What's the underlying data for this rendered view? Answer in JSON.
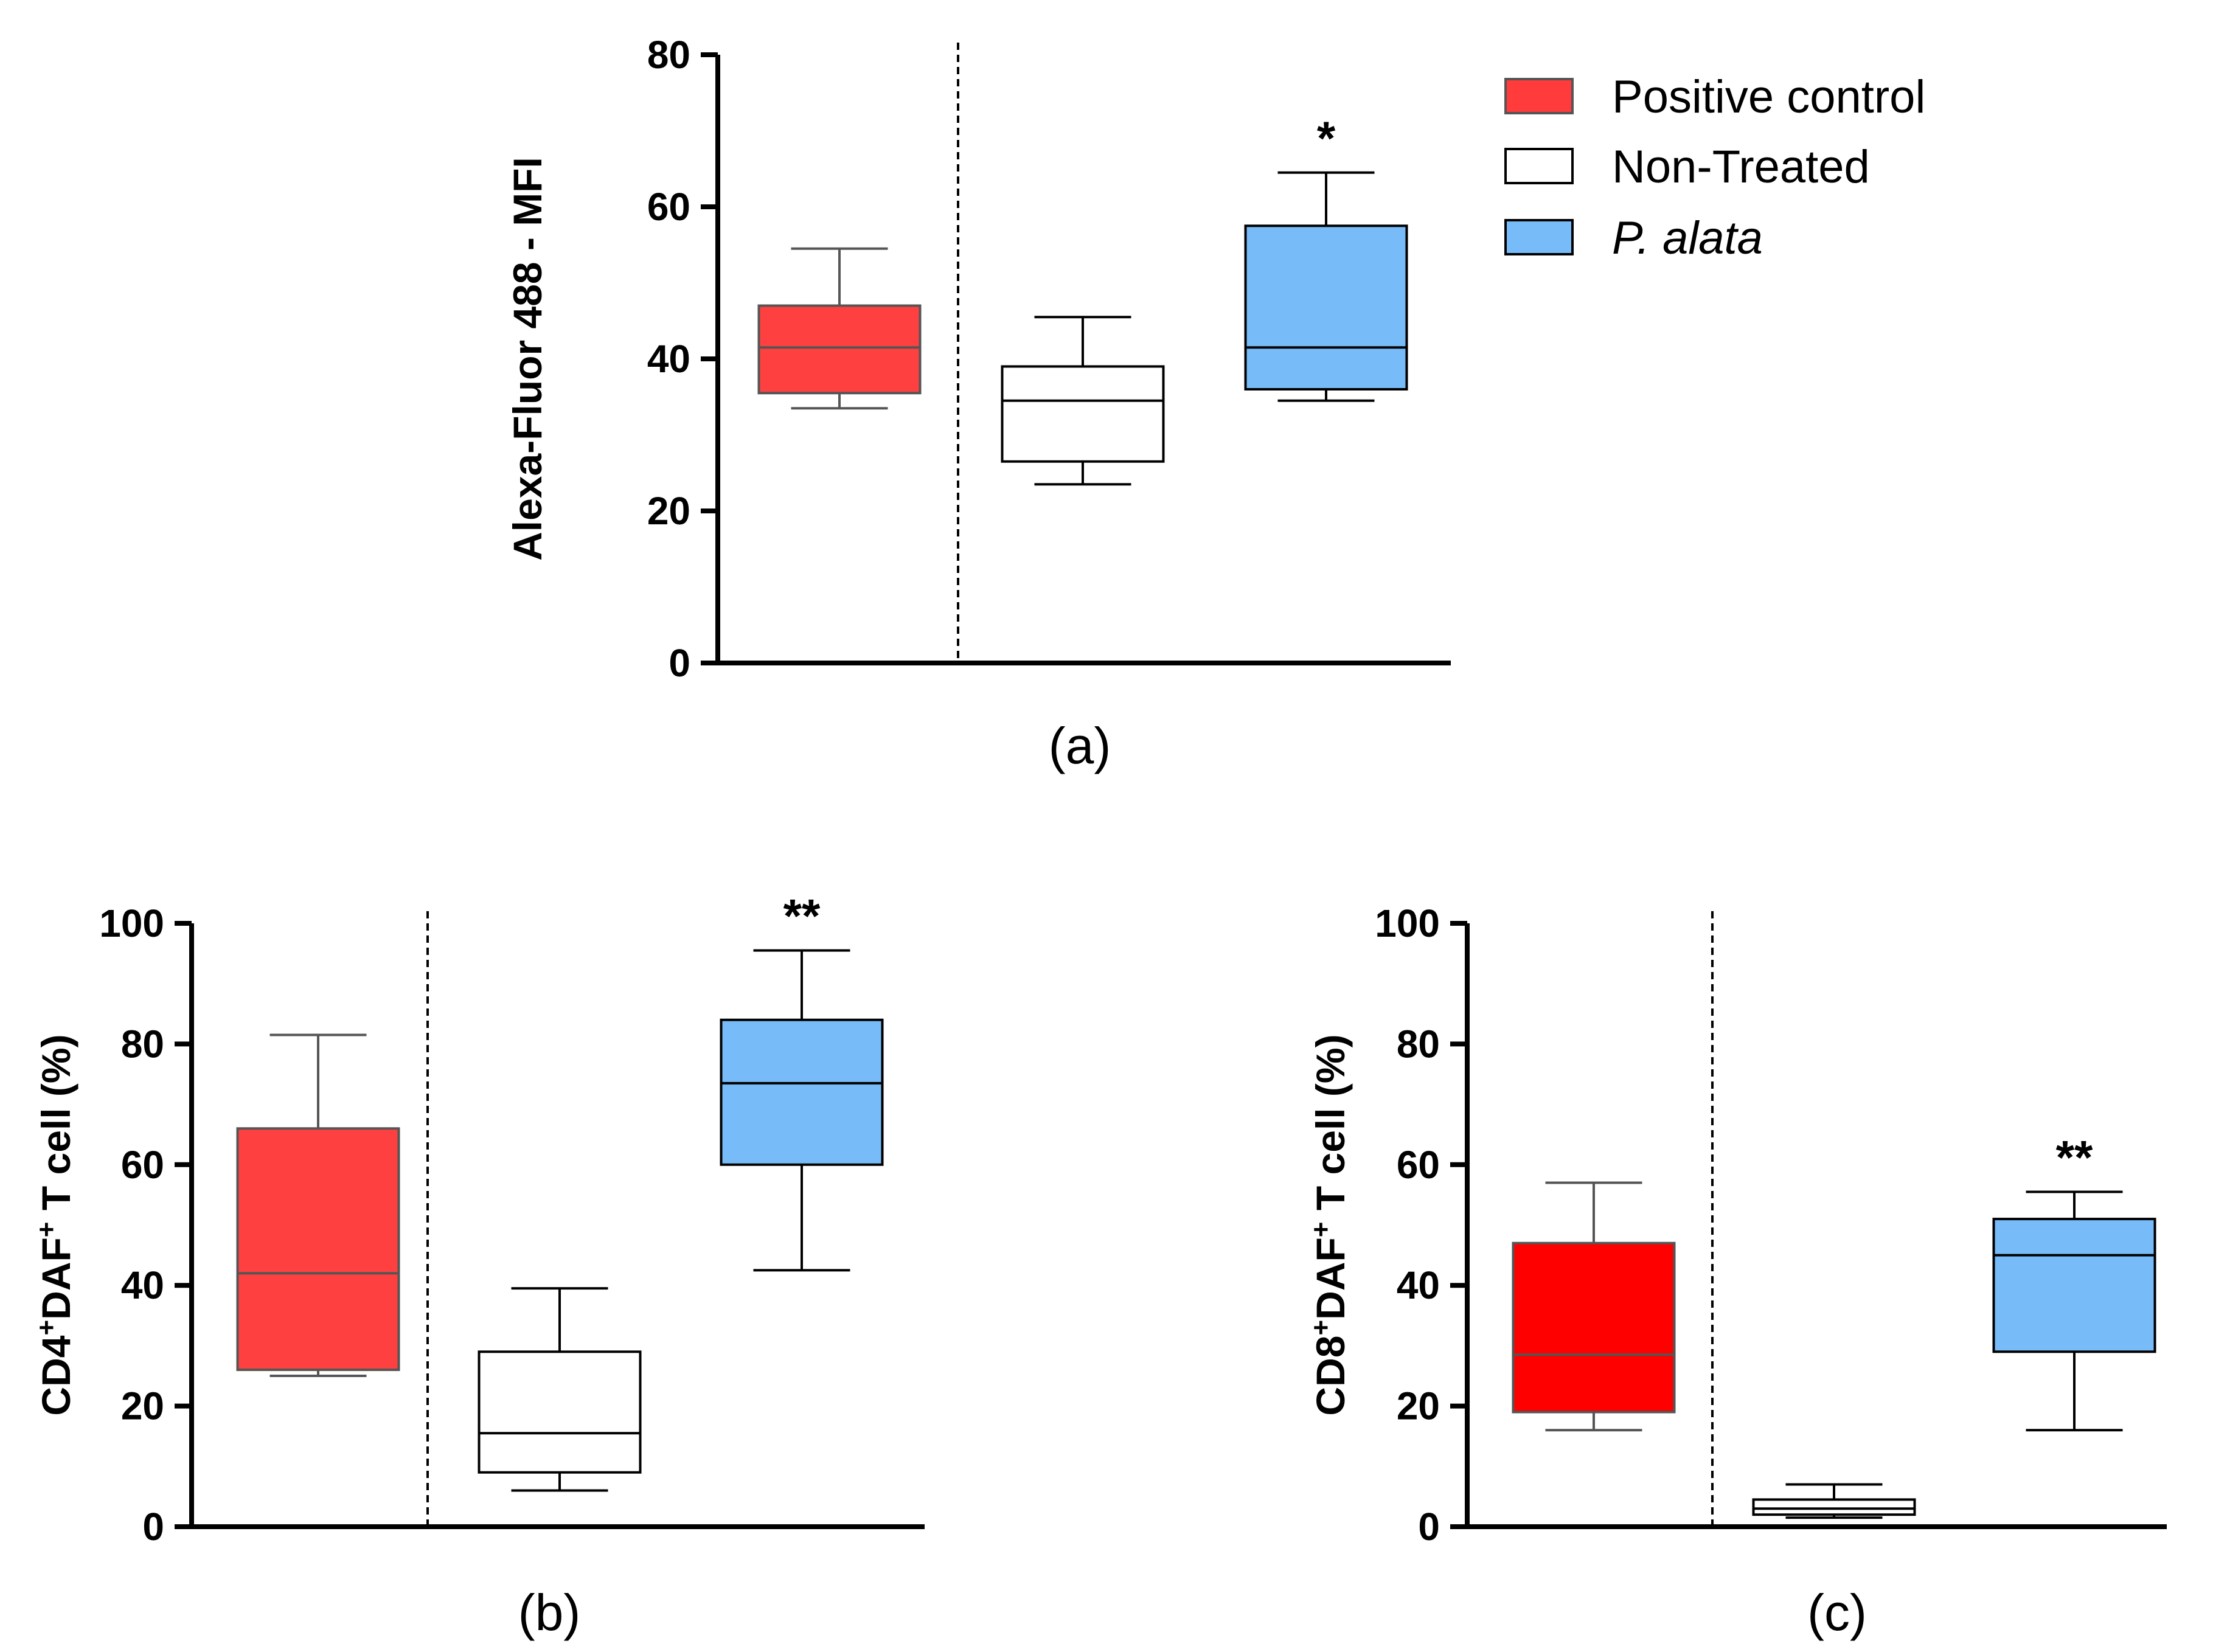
{
  "legend": {
    "position": "top-right",
    "items": [
      {
        "label": "Positive control",
        "italic": false,
        "color": "#ff3b3b"
      },
      {
        "label": "Non-Treated",
        "italic": false,
        "color": "#ffffff"
      },
      {
        "label": "P. alata",
        "italic": true,
        "color": "#77bbf8"
      }
    ]
  },
  "chart_data": [
    {
      "type": "box",
      "panel_label": "(a)",
      "ylabel": "Alexa-Fluor 488 - MFI",
      "ylim": [
        0,
        80
      ],
      "yticks": [
        0,
        20,
        40,
        60,
        80
      ],
      "groups": [
        {
          "name": "Positive control",
          "color": "#ff4040",
          "edge": "#555555",
          "min": 33.5,
          "q1": 35.5,
          "median": 41.5,
          "q3": 47,
          "max": 54.5,
          "sig": ""
        },
        {
          "name": "Non-Treated",
          "color": "#ffffff",
          "edge": "#000000",
          "min": 23.5,
          "q1": 26.5,
          "median": 34.5,
          "q3": 39,
          "max": 45.5,
          "sig": ""
        },
        {
          "name": "P. alata",
          "color": "#77bbf8",
          "edge": "#000000",
          "min": 34.5,
          "q1": 36,
          "median": 41.5,
          "q3": 57.5,
          "max": 64.5,
          "sig": "*"
        }
      ],
      "divider": "dashed line between Positive control and Non-Treated"
    },
    {
      "type": "box",
      "panel_label": "(b)",
      "ylabel": {
        "prefix": "CD4",
        "sup1": "+",
        "mid": "DAF",
        "sup2": "+",
        "suffix": " T cell (%)"
      },
      "ylim": [
        0,
        100
      ],
      "yticks": [
        0,
        20,
        40,
        60,
        80,
        100
      ],
      "groups": [
        {
          "name": "Positive control",
          "color": "#ff4040",
          "edge": "#555555",
          "min": 25,
          "q1": 26,
          "median": 42,
          "q3": 66,
          "max": 81.5,
          "sig": ""
        },
        {
          "name": "Non-Treated",
          "color": "#ffffff",
          "edge": "#000000",
          "min": 6,
          "q1": 9,
          "median": 15.5,
          "q3": 29,
          "max": 39.5,
          "sig": ""
        },
        {
          "name": "P. alata",
          "color": "#77bbf8",
          "edge": "#000000",
          "min": 42.5,
          "q1": 60,
          "median": 73.5,
          "q3": 84,
          "max": 95.5,
          "sig": "**"
        }
      ],
      "divider": "dashed line between Positive control and Non-Treated"
    },
    {
      "type": "box",
      "panel_label": "(c)",
      "ylabel": {
        "prefix": "CD8",
        "sup1": "+",
        "mid": "DAF",
        "sup2": "+",
        "suffix": " T cell (%)"
      },
      "ylim": [
        0,
        100
      ],
      "yticks": [
        0,
        20,
        40,
        60,
        80,
        100
      ],
      "groups": [
        {
          "name": "Positive control",
          "color": "#ff0000",
          "edge": "#555555",
          "min": 16,
          "q1": 19,
          "median": 28.5,
          "q3": 47,
          "max": 57,
          "sig": ""
        },
        {
          "name": "Non-Treated",
          "color": "#ffffff",
          "edge": "#000000",
          "min": 1.5,
          "q1": 2,
          "median": 3,
          "q3": 4.5,
          "max": 7,
          "sig": ""
        },
        {
          "name": "P. alata",
          "color": "#77bbf8",
          "edge": "#000000",
          "min": 16,
          "q1": 29,
          "median": 45,
          "q3": 51,
          "max": 55.5,
          "sig": "**"
        }
      ],
      "divider": "dashed line between Positive control and Non-Treated"
    }
  ]
}
